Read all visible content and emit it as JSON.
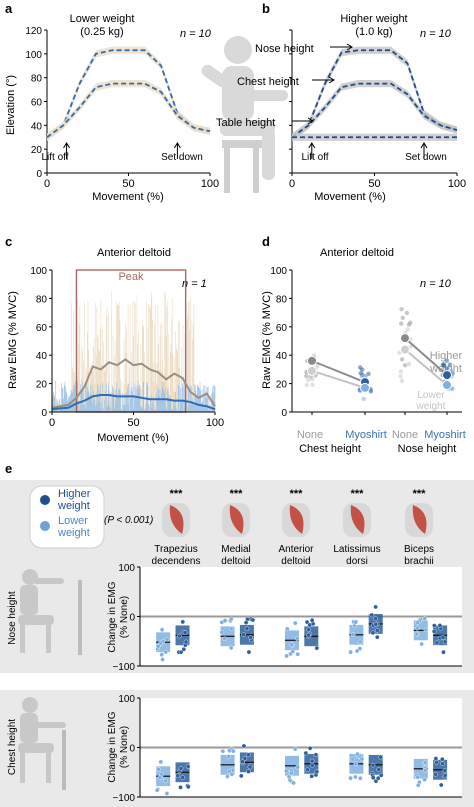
{
  "panel_a": {
    "letter": "a",
    "title": "Lower weight",
    "title2": "(0.25 kg)",
    "n": "n = 10",
    "ylabel": "Elevation (°)",
    "xlabel": "Movement (%)",
    "xticks": [
      "0",
      "50",
      "100"
    ],
    "yticks": [
      "0",
      "20",
      "40",
      "60",
      "80",
      "100",
      "120"
    ],
    "annot_lift": "Lift off",
    "annot_set": "Set down"
  },
  "panel_b": {
    "letter": "b",
    "title": "Higher weight",
    "title2": "(1.0 kg)",
    "n": "n = 10",
    "xlabel": "Movement (%)",
    "xticks": [
      "0",
      "50",
      "100"
    ],
    "nose": "Nose height",
    "chest": "Chest height",
    "table": "Table height",
    "annot_lift": "Lift off",
    "annot_set": "Set down"
  },
  "panel_c": {
    "letter": "c",
    "title": "Anterior deltoid",
    "n": "n = 1",
    "ylabel": "Raw EMG (% MVC)",
    "xlabel": "Movement (%)",
    "xticks": [
      "0",
      "50",
      "100"
    ],
    "yticks": [
      "0",
      "20",
      "40",
      "60",
      "80",
      "100"
    ],
    "peak": "Peak"
  },
  "panel_d": {
    "letter": "d",
    "title": "Anterior deltoid",
    "n": "n = 10",
    "ylabel": "Raw EMG (% MVC)",
    "yticks": [
      "0",
      "20",
      "40",
      "60",
      "80",
      "100"
    ],
    "cat_none": "None",
    "cat_myo": "Myoshirt",
    "group1": "Chest height",
    "group2": "Nose height",
    "higher": "Higher",
    "higher2": "weight",
    "lower": "Lower",
    "lower2": "weight"
  },
  "panel_e": {
    "letter": "e",
    "legend_higher": "Higher",
    "legend_higher2": "weight",
    "legend_lower": "Lower",
    "legend_lower2": "weight",
    "pvalue": "(P < 0.001)",
    "stars": "***",
    "muscles": [
      {
        "l1": "Trapezius",
        "l2": "decendens"
      },
      {
        "l1": "Medial",
        "l2": "deltoid"
      },
      {
        "l1": "Anterior",
        "l2": "deltoid"
      },
      {
        "l1": "Latissimus",
        "l2": "dorsi"
      },
      {
        "l1": "Biceps",
        "l2": "brachii"
      }
    ],
    "row1": "Nose height",
    "row2": "Chest height",
    "ylabel1": "Change in EMG",
    "ylabel2": "(% None)",
    "yticks": [
      "100",
      "0",
      "−100"
    ]
  },
  "chart_data": [
    {
      "type": "line",
      "title": "Lower weight (0.25 kg)",
      "xlabel": "Movement (%)",
      "ylabel": "Elevation (°)",
      "xlim": [
        0,
        100
      ],
      "ylim": [
        0,
        120
      ],
      "x": [
        0,
        10,
        20,
        30,
        40,
        50,
        60,
        70,
        80,
        90,
        100
      ],
      "series": [
        {
          "values": [
            30,
            40,
            75,
            100,
            103,
            103,
            103,
            90,
            50,
            38,
            35
          ]
        },
        {
          "values": [
            30,
            40,
            55,
            72,
            75,
            75,
            75,
            68,
            48,
            38,
            35
          ]
        }
      ]
    },
    {
      "type": "line",
      "title": "Higher weight (1.0 kg)",
      "xlabel": "Movement (%)",
      "xlim": [
        0,
        100
      ],
      "ylim": [
        0,
        120
      ],
      "x": [
        0,
        10,
        20,
        30,
        40,
        50,
        60,
        70,
        80,
        90,
        100
      ],
      "series": [
        {
          "name": "Nose height",
          "values": [
            30,
            40,
            75,
            101,
            103,
            103,
            103,
            92,
            50,
            40,
            36
          ]
        },
        {
          "name": "Chest height",
          "values": [
            30,
            40,
            55,
            72,
            75,
            75,
            75,
            66,
            48,
            40,
            36
          ]
        },
        {
          "name": "Table height",
          "values": [
            30,
            30,
            30,
            30,
            30,
            30,
            30,
            30,
            30,
            30,
            30
          ]
        }
      ]
    },
    {
      "type": "line",
      "title": "Anterior deltoid",
      "xlabel": "Movement (%)",
      "ylabel": "Raw EMG (% MVC)",
      "xlim": [
        0,
        100
      ],
      "ylim": [
        0,
        100
      ],
      "x": [
        0,
        10,
        15,
        20,
        25,
        30,
        35,
        40,
        45,
        50,
        55,
        60,
        65,
        70,
        75,
        80,
        85,
        90,
        95,
        100
      ],
      "series": [
        {
          "values": [
            3,
            5,
            10,
            18,
            32,
            30,
            35,
            33,
            37,
            33,
            34,
            30,
            28,
            23,
            27,
            24,
            14,
            10,
            13,
            4
          ]
        },
        {
          "values": [
            2,
            3,
            6,
            8,
            11,
            12,
            12,
            11,
            11,
            11,
            10,
            9,
            9,
            9,
            8,
            8,
            7,
            5,
            4,
            2
          ]
        }
      ],
      "annotations": [
        "Peak"
      ]
    },
    {
      "type": "scatter",
      "title": "Anterior deltoid",
      "ylabel": "Raw EMG (% MVC)",
      "ylim": [
        0,
        100
      ],
      "categories": [
        "None",
        "Myoshirt",
        "None",
        "Myoshirt"
      ],
      "groups": [
        "Chest height",
        "Nose height"
      ],
      "series": [
        {
          "name": "Higher weight",
          "values": [
            36,
            21,
            52,
            26
          ]
        },
        {
          "name": "Lower weight",
          "values": [
            29,
            17,
            44,
            19
          ]
        }
      ]
    },
    {
      "type": "bar",
      "title": "Nose height",
      "ylabel": "Change in EMG (% None)",
      "ylim": [
        -100,
        100
      ],
      "categories": [
        "Trapezius decendens",
        "Medial deltoid",
        "Anterior deltoid",
        "Latissimus dorsi",
        "Biceps brachii"
      ],
      "series": [
        {
          "name": "Lower weight",
          "values": [
            -52,
            -40,
            -48,
            -37,
            -28
          ]
        },
        {
          "name": "Higher weight",
          "values": [
            -38,
            -37,
            -40,
            -15,
            -38
          ]
        }
      ]
    },
    {
      "type": "bar",
      "title": "Chest height",
      "ylabel": "Change in EMG (% None)",
      "ylim": [
        -100,
        100
      ],
      "categories": [
        "Trapezius decendens",
        "Medial deltoid",
        "Anterior deltoid",
        "Latissimus dorsi",
        "Biceps brachii"
      ],
      "series": [
        {
          "name": "Lower weight",
          "values": [
            -58,
            -35,
            -37,
            -33,
            -43
          ]
        },
        {
          "name": "Higher weight",
          "values": [
            -50,
            -30,
            -33,
            -35,
            -45
          ]
        }
      ]
    }
  ]
}
